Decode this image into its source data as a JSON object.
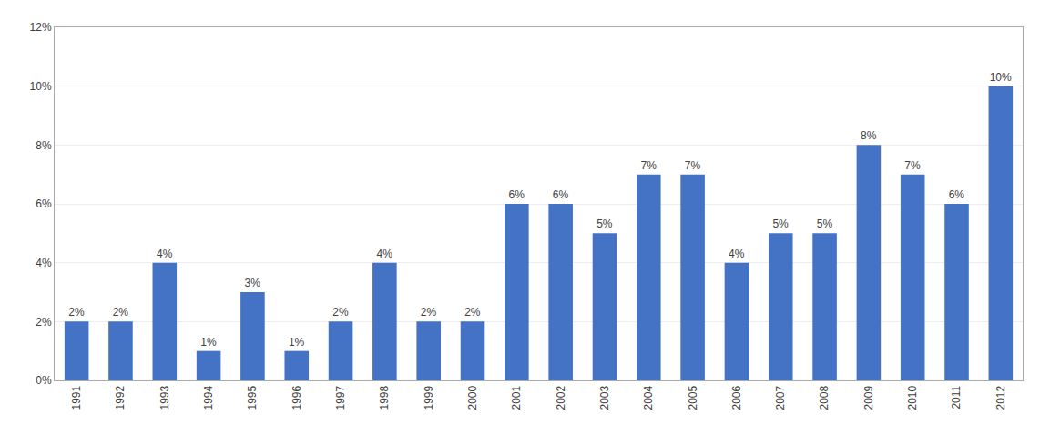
{
  "chart_data": {
    "type": "bar",
    "categories": [
      "1991",
      "1992",
      "1993",
      "1994",
      "1995",
      "1996",
      "1997",
      "1998",
      "1999",
      "2000",
      "2001",
      "2002",
      "2003",
      "2004",
      "2005",
      "2006",
      "2007",
      "2008",
      "2009",
      "2010",
      "2011",
      "2012"
    ],
    "values": [
      2,
      2,
      4,
      1,
      3,
      1,
      2,
      4,
      2,
      2,
      6,
      6,
      5,
      7,
      7,
      4,
      5,
      5,
      8,
      7,
      6,
      10
    ],
    "value_labels": [
      "2%",
      "2%",
      "4%",
      "1%",
      "3%",
      "1%",
      "2%",
      "4%",
      "2%",
      "2%",
      "6%",
      "6%",
      "5%",
      "7%",
      "7%",
      "4%",
      "5%",
      "5%",
      "8%",
      "7%",
      "6%",
      "10%"
    ],
    "data_labels": true,
    "color": "#4472C4",
    "ylim": [
      0,
      12
    ],
    "yticks": [
      {
        "value": 0,
        "label": "0%"
      },
      {
        "value": 2,
        "label": "2%"
      },
      {
        "value": 4,
        "label": "4%"
      },
      {
        "value": 6,
        "label": "6%"
      },
      {
        "value": 8,
        "label": "8%"
      },
      {
        "value": 10,
        "label": "10%"
      },
      {
        "value": 12,
        "label": "12%"
      }
    ],
    "grid": true
  }
}
